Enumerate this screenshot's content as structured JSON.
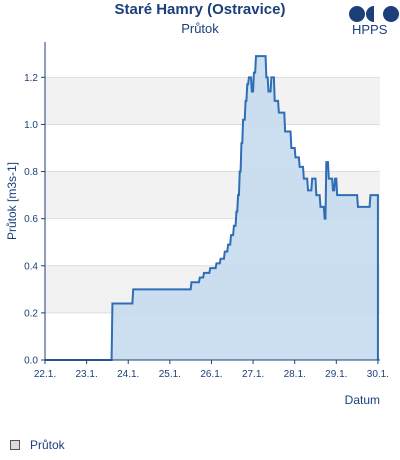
{
  "header": {
    "title": "Staré Hamry (Ostravice)",
    "subtitle": "Průtok",
    "logo_text": "HPPS"
  },
  "legend": {
    "label": "Průtok"
  },
  "colors": {
    "line": "#2f6db5",
    "fill": "#c5dbf0",
    "band": "#f2f2f2",
    "text": "#1c3f7a",
    "axis": "#1c3f7a"
  },
  "chart_data": {
    "type": "area",
    "title": "Staré Hamry (Ostravice)",
    "subtitle": "Průtok",
    "xlabel": "Datum",
    "ylabel": "Průtok [m3s-1]",
    "xlim": [
      22.0,
      30.05
    ],
    "ylim": [
      0.0,
      1.35
    ],
    "x_ticks": [
      {
        "v": 22,
        "label": "22.1."
      },
      {
        "v": 23,
        "label": "23.1."
      },
      {
        "v": 24,
        "label": "24.1."
      },
      {
        "v": 25,
        "label": "25.1."
      },
      {
        "v": 26,
        "label": "26.1."
      },
      {
        "v": 27,
        "label": "27.1."
      },
      {
        "v": 28,
        "label": "28.1."
      },
      {
        "v": 29,
        "label": "29.1."
      },
      {
        "v": 30,
        "label": "30.1."
      }
    ],
    "y_ticks": [
      {
        "v": 0.0,
        "label": "0.0"
      },
      {
        "v": 0.2,
        "label": "0.2"
      },
      {
        "v": 0.4,
        "label": "0.4"
      },
      {
        "v": 0.6,
        "label": "0.6"
      },
      {
        "v": 0.8,
        "label": "0.8"
      },
      {
        "v": 1.0,
        "label": "1.0"
      },
      {
        "v": 1.2,
        "label": "1.2"
      }
    ],
    "grid": true,
    "step": true,
    "series": [
      {
        "name": "Průtok",
        "points": [
          [
            22.0,
            0.0
          ],
          [
            23.6,
            0.0
          ],
          [
            23.62,
            0.24
          ],
          [
            24.1,
            0.24
          ],
          [
            24.12,
            0.3
          ],
          [
            25.5,
            0.3
          ],
          [
            25.52,
            0.33
          ],
          [
            25.7,
            0.33
          ],
          [
            25.72,
            0.35
          ],
          [
            25.8,
            0.35
          ],
          [
            25.82,
            0.37
          ],
          [
            25.95,
            0.37
          ],
          [
            25.97,
            0.39
          ],
          [
            26.1,
            0.39
          ],
          [
            26.12,
            0.41
          ],
          [
            26.2,
            0.41
          ],
          [
            26.22,
            0.43
          ],
          [
            26.3,
            0.43
          ],
          [
            26.32,
            0.46
          ],
          [
            26.38,
            0.46
          ],
          [
            26.4,
            0.49
          ],
          [
            26.45,
            0.49
          ],
          [
            26.47,
            0.53
          ],
          [
            26.52,
            0.53
          ],
          [
            26.54,
            0.57
          ],
          [
            26.58,
            0.57
          ],
          [
            26.6,
            0.63
          ],
          [
            26.62,
            0.63
          ],
          [
            26.64,
            0.7
          ],
          [
            26.66,
            0.7
          ],
          [
            26.68,
            0.8
          ],
          [
            26.7,
            0.8
          ],
          [
            26.72,
            0.92
          ],
          [
            26.74,
            0.92
          ],
          [
            26.76,
            1.02
          ],
          [
            26.8,
            1.02
          ],
          [
            26.82,
            1.1
          ],
          [
            26.84,
            1.1
          ],
          [
            26.86,
            1.17
          ],
          [
            26.88,
            1.17
          ],
          [
            26.9,
            1.2
          ],
          [
            26.95,
            1.2
          ],
          [
            26.97,
            1.14
          ],
          [
            27.0,
            1.14
          ],
          [
            27.02,
            1.22
          ],
          [
            27.05,
            1.22
          ],
          [
            27.07,
            1.29
          ],
          [
            27.3,
            1.29
          ],
          [
            27.32,
            1.2
          ],
          [
            27.35,
            1.2
          ],
          [
            27.37,
            1.14
          ],
          [
            27.42,
            1.14
          ],
          [
            27.44,
            1.2
          ],
          [
            27.5,
            1.2
          ],
          [
            27.52,
            1.1
          ],
          [
            27.6,
            1.1
          ],
          [
            27.62,
            1.05
          ],
          [
            27.75,
            1.05
          ],
          [
            27.77,
            0.97
          ],
          [
            27.9,
            0.97
          ],
          [
            27.92,
            0.9
          ],
          [
            28.0,
            0.9
          ],
          [
            28.02,
            0.86
          ],
          [
            28.1,
            0.86
          ],
          [
            28.12,
            0.82
          ],
          [
            28.2,
            0.82
          ],
          [
            28.22,
            0.77
          ],
          [
            28.3,
            0.77
          ],
          [
            28.32,
            0.72
          ],
          [
            28.4,
            0.72
          ],
          [
            28.42,
            0.77
          ],
          [
            28.5,
            0.77
          ],
          [
            28.52,
            0.7
          ],
          [
            28.6,
            0.7
          ],
          [
            28.62,
            0.65
          ],
          [
            28.7,
            0.65
          ],
          [
            28.72,
            0.6
          ],
          [
            28.74,
            0.6
          ],
          [
            28.76,
            0.84
          ],
          [
            28.8,
            0.84
          ],
          [
            28.82,
            0.77
          ],
          [
            28.9,
            0.77
          ],
          [
            28.92,
            0.72
          ],
          [
            28.95,
            0.72
          ],
          [
            28.97,
            0.77
          ],
          [
            29.0,
            0.77
          ],
          [
            29.02,
            0.7
          ],
          [
            29.5,
            0.7
          ],
          [
            29.52,
            0.65
          ],
          [
            29.8,
            0.65
          ],
          [
            29.82,
            0.7
          ],
          [
            30.0,
            0.7
          ],
          [
            30.0,
            0.0
          ]
        ]
      }
    ]
  }
}
